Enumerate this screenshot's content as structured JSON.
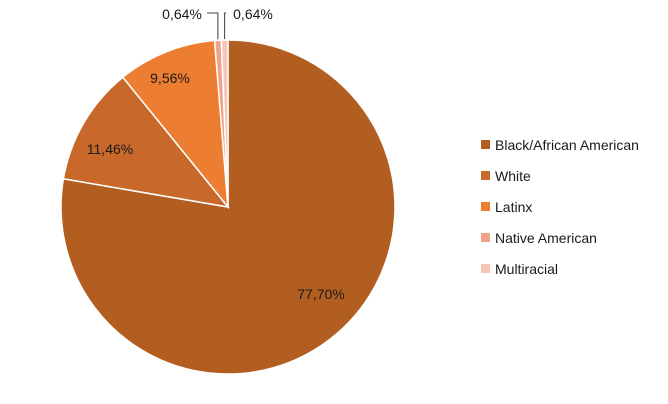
{
  "chart_data": {
    "type": "pie",
    "title": "",
    "slices": [
      {
        "label": "Black/African American",
        "value": 77.7,
        "display": "77,70%",
        "color": "#B35E21"
      },
      {
        "label": "White",
        "value": 11.46,
        "display": "11,46%",
        "color": "#C8682A"
      },
      {
        "label": "Latinx",
        "value": 9.56,
        "display": "9,56%",
        "color": "#ED7D31"
      },
      {
        "label": "Native American",
        "value": 0.64,
        "display": "0,64%",
        "color": "#F1A289"
      },
      {
        "label": "Multiracial",
        "value": 0.64,
        "display": "0,64%",
        "color": "#F6C7B6"
      }
    ],
    "legend_position": "right"
  }
}
